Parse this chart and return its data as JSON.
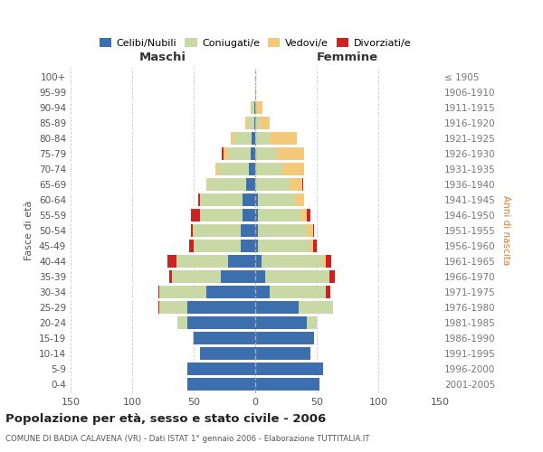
{
  "age_groups": [
    "0-4",
    "5-9",
    "10-14",
    "15-19",
    "20-24",
    "25-29",
    "30-34",
    "35-39",
    "40-44",
    "45-49",
    "50-54",
    "55-59",
    "60-64",
    "65-69",
    "70-74",
    "75-79",
    "80-84",
    "85-89",
    "90-94",
    "95-99",
    "100+"
  ],
  "birth_years": [
    "2001-2005",
    "1996-2000",
    "1991-1995",
    "1986-1990",
    "1981-1985",
    "1976-1980",
    "1971-1975",
    "1966-1970",
    "1961-1965",
    "1956-1960",
    "1951-1955",
    "1946-1950",
    "1941-1945",
    "1936-1940",
    "1931-1935",
    "1926-1930",
    "1921-1925",
    "1916-1920",
    "1911-1915",
    "1906-1910",
    "≤ 1905"
  ],
  "maschi": {
    "celibi": [
      55,
      55,
      45,
      50,
      55,
      55,
      40,
      28,
      22,
      12,
      12,
      10,
      10,
      7,
      5,
      4,
      3,
      1,
      1,
      0,
      0
    ],
    "coniugati": [
      0,
      0,
      0,
      1,
      8,
      22,
      38,
      40,
      42,
      38,
      38,
      35,
      35,
      32,
      25,
      18,
      14,
      5,
      2,
      0,
      0
    ],
    "vedovi": [
      0,
      0,
      0,
      0,
      0,
      1,
      0,
      0,
      0,
      0,
      1,
      0,
      0,
      1,
      2,
      4,
      3,
      2,
      1,
      0,
      0
    ],
    "divorziati": [
      0,
      0,
      0,
      0,
      0,
      1,
      1,
      2,
      7,
      4,
      1,
      7,
      1,
      0,
      0,
      1,
      0,
      0,
      0,
      0,
      0
    ]
  },
  "femmine": {
    "nubili": [
      52,
      55,
      45,
      48,
      42,
      35,
      12,
      8,
      5,
      2,
      2,
      2,
      2,
      0,
      0,
      0,
      0,
      0,
      0,
      0,
      0
    ],
    "coniugate": [
      0,
      0,
      0,
      0,
      8,
      28,
      45,
      52,
      50,
      42,
      40,
      35,
      30,
      28,
      22,
      18,
      12,
      4,
      1,
      0,
      0
    ],
    "vedove": [
      0,
      0,
      0,
      0,
      0,
      0,
      0,
      0,
      2,
      3,
      5,
      5,
      8,
      10,
      18,
      22,
      22,
      8,
      5,
      1,
      0
    ],
    "divorziate": [
      0,
      0,
      0,
      0,
      0,
      0,
      4,
      5,
      5,
      3,
      1,
      3,
      0,
      1,
      0,
      0,
      0,
      0,
      0,
      0,
      0
    ]
  },
  "colors": {
    "celibi_nubili": "#3d6faf",
    "coniugati": "#c8d9a5",
    "vedovi": "#f5c97a",
    "divorziati": "#cc2222"
  },
  "xlim": 150,
  "xticks": [
    -150,
    -100,
    -50,
    0,
    50,
    100,
    150
  ],
  "xticklabels": [
    "150",
    "100",
    "50",
    "0",
    "50",
    "100",
    "150"
  ],
  "title": "Popolazione per età, sesso e stato civile - 2006",
  "subtitle": "COMUNE DI BADIA CALAVENA (VR) - Dati ISTAT 1° gennaio 2006 - Elaborazione TUTTITALIA.IT",
  "ylabel_left": "Fasce di età",
  "ylabel_right": "Anni di nascita",
  "label_maschi": "Maschi",
  "label_femmine": "Femmine",
  "legend_labels": [
    "Celibi/Nubili",
    "Coniugati/e",
    "Vedovi/e",
    "Divorziati/e"
  ],
  "grid_color": "#bbbbbb",
  "bg_color": "#ffffff",
  "bar_height": 0.82
}
